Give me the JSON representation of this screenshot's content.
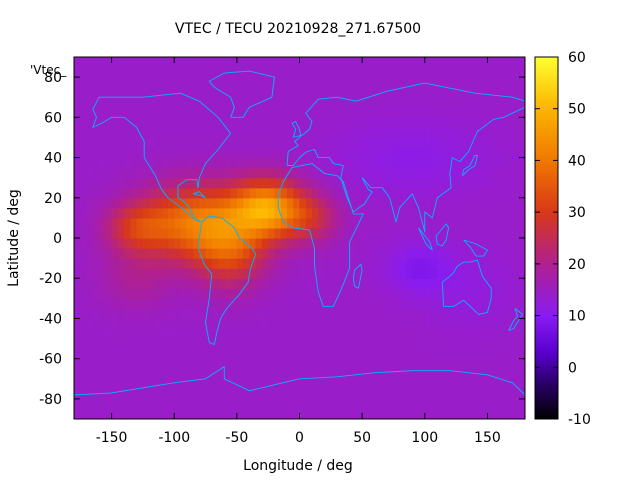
{
  "chart_data": {
    "type": "heatmap",
    "title": "VTEC / TECU 20210928_271.67500",
    "xlabel": "Longitude / deg",
    "ylabel": "Latitude / deg",
    "key_label": "'Vtec_",
    "xlim": [
      -180,
      180
    ],
    "ylim": [
      -90,
      90
    ],
    "x_ticks": [
      -150,
      -100,
      -50,
      0,
      50,
      100,
      150
    ],
    "y_ticks": [
      -80,
      -60,
      -40,
      -20,
      0,
      20,
      40,
      60,
      80
    ],
    "colorbar": {
      "range": [
        -10,
        60
      ],
      "ticks": [
        -10,
        0,
        10,
        20,
        30,
        40,
        50,
        60
      ],
      "palette": [
        "#000000",
        "#2a006a",
        "#5a00d0",
        "#8a1cf0",
        "#b02090",
        "#d83818",
        "#f07800",
        "#fcb400",
        "#ffff30"
      ],
      "palette_stops": [
        -10,
        -3,
        3,
        10,
        20,
        30,
        40,
        50,
        60
      ]
    },
    "grid": false,
    "background_tec": 14,
    "anomaly_components": [
      {
        "name": "anomaly-central-america",
        "lon": -80,
        "lat": 8,
        "sigma_lon": 45,
        "sigma_lat": 18,
        "peak": 26
      },
      {
        "name": "anomaly-south-america",
        "lon": -55,
        "lat": -8,
        "sigma_lon": 28,
        "sigma_lat": 17,
        "peak": 14
      },
      {
        "name": "anomaly-atlantic",
        "lon": -25,
        "lat": 15,
        "sigma_lon": 28,
        "sigma_lat": 14,
        "peak": 30
      },
      {
        "name": "anomaly-west-africa",
        "lon": 10,
        "lat": 10,
        "sigma_lon": 22,
        "sigma_lat": 12,
        "peak": 10
      },
      {
        "name": "anomaly-pacific",
        "lon": -130,
        "lat": 5,
        "sigma_lon": 25,
        "sigma_lat": 12,
        "peak": 12
      },
      {
        "name": "anomaly-south-pacific",
        "lon": -130,
        "lat": -20,
        "sigma_lon": 30,
        "sigma_lat": 15,
        "peak": 5
      },
      {
        "name": "anomaly-australia",
        "lon": 135,
        "lat": -25,
        "sigma_lon": 35,
        "sigma_lat": 20,
        "peak": -2
      },
      {
        "name": "depletion-indian-ocean",
        "lon": 95,
        "lat": -15,
        "sigma_lon": 25,
        "sigma_lat": 12,
        "peak": -5
      },
      {
        "name": "depletion-asia",
        "lon": 90,
        "lat": 40,
        "sigma_lon": 60,
        "sigma_lat": 18,
        "peak": -3
      }
    ]
  },
  "coastlines": [
    {
      "name": "coastline-north-america",
      "points": [
        [
          -165,
          64
        ],
        [
          -160,
          70
        ],
        [
          -140,
          70
        ],
        [
          -125,
          70
        ],
        [
          -95,
          72
        ],
        [
          -80,
          68
        ],
        [
          -65,
          60
        ],
        [
          -55,
          52
        ],
        [
          -65,
          44
        ],
        [
          -75,
          37
        ],
        [
          -80,
          30
        ],
        [
          -81,
          25
        ],
        [
          -82,
          29
        ],
        [
          -90,
          29
        ],
        [
          -97,
          26
        ],
        [
          -97,
          20
        ],
        [
          -92,
          18
        ],
        [
          -88,
          15
        ],
        [
          -83,
          9
        ],
        [
          -78,
          8
        ],
        [
          -85,
          10
        ],
        [
          -92,
          14
        ],
        [
          -105,
          20
        ],
        [
          -110,
          24
        ],
        [
          -115,
          31
        ],
        [
          -118,
          34
        ],
        [
          -124,
          40
        ],
        [
          -124,
          48
        ],
        [
          -130,
          55
        ],
        [
          -140,
          60
        ],
        [
          -150,
          60
        ],
        [
          -158,
          57
        ],
        [
          -165,
          55
        ],
        [
          -162,
          60
        ],
        [
          -165,
          64
        ]
      ]
    },
    {
      "name": "coastline-south-america",
      "points": [
        [
          -78,
          8
        ],
        [
          -72,
          11
        ],
        [
          -62,
          10
        ],
        [
          -52,
          5
        ],
        [
          -48,
          0
        ],
        [
          -38,
          -5
        ],
        [
          -35,
          -8
        ],
        [
          -39,
          -15
        ],
        [
          -41,
          -22
        ],
        [
          -48,
          -28
        ],
        [
          -58,
          -35
        ],
        [
          -63,
          -40
        ],
        [
          -66,
          -47
        ],
        [
          -68,
          -53
        ],
        [
          -72,
          -52
        ],
        [
          -75,
          -42
        ],
        [
          -72,
          -30
        ],
        [
          -70,
          -18
        ],
        [
          -76,
          -13
        ],
        [
          -81,
          -5
        ],
        [
          -80,
          0
        ],
        [
          -78,
          8
        ]
      ]
    },
    {
      "name": "coastline-africa",
      "points": [
        [
          -17,
          15
        ],
        [
          -17,
          21
        ],
        [
          -13,
          28
        ],
        [
          -6,
          35
        ],
        [
          10,
          37
        ],
        [
          20,
          32
        ],
        [
          30,
          31
        ],
        [
          35,
          28
        ],
        [
          43,
          12
        ],
        [
          51,
          12
        ],
        [
          40,
          -2
        ],
        [
          40,
          -15
        ],
        [
          33,
          -26
        ],
        [
          27,
          -34
        ],
        [
          19,
          -34
        ],
        [
          15,
          -27
        ],
        [
          12,
          -14
        ],
        [
          12,
          -5
        ],
        [
          8,
          4
        ],
        [
          -5,
          5
        ],
        [
          -13,
          8
        ],
        [
          -17,
          15
        ]
      ]
    },
    {
      "name": "coastline-eurasia",
      "points": [
        [
          -10,
          36
        ],
        [
          -9,
          43
        ],
        [
          -1,
          46
        ],
        [
          -4,
          48
        ],
        [
          2,
          51
        ],
        [
          8,
          54
        ],
        [
          10,
          58
        ],
        [
          5,
          62
        ],
        [
          15,
          69
        ],
        [
          30,
          70
        ],
        [
          45,
          68
        ],
        [
          70,
          73
        ],
        [
          100,
          77
        ],
        [
          140,
          72
        ],
        [
          170,
          70
        ],
        [
          180,
          68
        ],
        [
          180,
          65
        ],
        [
          163,
          60
        ],
        [
          155,
          59
        ],
        [
          142,
          53
        ],
        [
          135,
          43
        ],
        [
          128,
          38
        ],
        [
          122,
          40
        ],
        [
          120,
          32
        ],
        [
          121,
          25
        ],
        [
          110,
          20
        ],
        [
          106,
          10
        ],
        [
          100,
          13
        ],
        [
          100,
          3
        ],
        [
          95,
          15
        ],
        [
          90,
          22
        ],
        [
          80,
          15
        ],
        [
          77,
          8
        ],
        [
          72,
          20
        ],
        [
          66,
          25
        ],
        [
          57,
          25
        ],
        [
          50,
          30
        ],
        [
          55,
          24
        ],
        [
          58,
          23
        ],
        [
          52,
          17
        ],
        [
          43,
          13
        ],
        [
          38,
          20
        ],
        [
          33,
          30
        ],
        [
          35,
          36
        ],
        [
          27,
          37
        ],
        [
          24,
          40
        ],
        [
          15,
          40
        ],
        [
          12,
          44
        ],
        [
          6,
          43
        ],
        [
          0,
          40
        ],
        [
          -5,
          36
        ],
        [
          -10,
          36
        ]
      ]
    },
    {
      "name": "coastline-australia",
      "points": [
        [
          114,
          -22
        ],
        [
          115,
          -34
        ],
        [
          123,
          -34
        ],
        [
          131,
          -31
        ],
        [
          138,
          -35
        ],
        [
          143,
          -38
        ],
        [
          150,
          -37
        ],
        [
          153,
          -30
        ],
        [
          153,
          -25
        ],
        [
          146,
          -19
        ],
        [
          142,
          -11
        ],
        [
          136,
          -12
        ],
        [
          131,
          -12
        ],
        [
          126,
          -14
        ],
        [
          122,
          -18
        ],
        [
          114,
          -22
        ]
      ]
    },
    {
      "name": "coastline-greenland",
      "points": [
        [
          -55,
          60
        ],
        [
          -45,
          60
        ],
        [
          -40,
          65
        ],
        [
          -22,
          70
        ],
        [
          -20,
          80
        ],
        [
          -40,
          83
        ],
        [
          -60,
          82
        ],
        [
          -72,
          78
        ],
        [
          -68,
          75
        ],
        [
          -55,
          70
        ],
        [
          -52,
          65
        ],
        [
          -55,
          60
        ]
      ]
    },
    {
      "name": "coastline-antarctica",
      "points": [
        [
          -180,
          -78
        ],
        [
          -150,
          -77
        ],
        [
          -120,
          -74
        ],
        [
          -100,
          -72
        ],
        [
          -75,
          -70
        ],
        [
          -60,
          -64
        ],
        [
          -60,
          -70
        ],
        [
          -40,
          -76
        ],
        [
          -20,
          -73
        ],
        [
          0,
          -70
        ],
        [
          30,
          -69
        ],
        [
          60,
          -67
        ],
        [
          90,
          -66
        ],
        [
          120,
          -66
        ],
        [
          150,
          -68
        ],
        [
          170,
          -72
        ],
        [
          180,
          -78
        ]
      ]
    },
    {
      "name": "coastline-madagascar",
      "points": [
        [
          44,
          -16
        ],
        [
          49,
          -13
        ],
        [
          50,
          -16
        ],
        [
          47,
          -25
        ],
        [
          44,
          -24
        ],
        [
          43,
          -20
        ],
        [
          44,
          -16
        ]
      ]
    },
    {
      "name": "coastline-uk",
      "points": [
        [
          -5,
          50
        ],
        [
          1,
          51
        ],
        [
          0,
          54
        ],
        [
          -3,
          58
        ],
        [
          -6,
          57
        ],
        [
          -3,
          54
        ],
        [
          -5,
          50
        ]
      ]
    },
    {
      "name": "coastline-japan",
      "points": [
        [
          130,
          31
        ],
        [
          135,
          34
        ],
        [
          140,
          36
        ],
        [
          142,
          41
        ],
        [
          140,
          41
        ],
        [
          136,
          36
        ],
        [
          131,
          34
        ],
        [
          130,
          31
        ]
      ]
    },
    {
      "name": "coastline-borneo",
      "points": [
        [
          109,
          1
        ],
        [
          117,
          7
        ],
        [
          119,
          5
        ],
        [
          117,
          -1
        ],
        [
          114,
          -4
        ],
        [
          110,
          -3
        ],
        [
          109,
          1
        ]
      ]
    },
    {
      "name": "coastline-new-guinea",
      "points": [
        [
          131,
          -1
        ],
        [
          141,
          -3
        ],
        [
          150,
          -6
        ],
        [
          147,
          -9
        ],
        [
          141,
          -9
        ],
        [
          137,
          -5
        ],
        [
          131,
          -1
        ]
      ]
    },
    {
      "name": "coastline-sumatra",
      "points": [
        [
          95,
          5
        ],
        [
          104,
          -2
        ],
        [
          106,
          -6
        ],
        [
          101,
          -3
        ],
        [
          95,
          5
        ]
      ]
    },
    {
      "name": "coastline-new-zealand",
      "points": [
        [
          172,
          -35
        ],
        [
          178,
          -38
        ],
        [
          175,
          -41
        ],
        [
          171,
          -45
        ],
        [
          167,
          -46
        ],
        [
          171,
          -41
        ],
        [
          174,
          -39
        ],
        [
          172,
          -35
        ]
      ]
    },
    {
      "name": "coastline-cuba",
      "points": [
        [
          -85,
          22
        ],
        [
          -80,
          23
        ],
        [
          -75,
          20
        ],
        [
          -78,
          21
        ],
        [
          -85,
          22
        ]
      ]
    }
  ]
}
